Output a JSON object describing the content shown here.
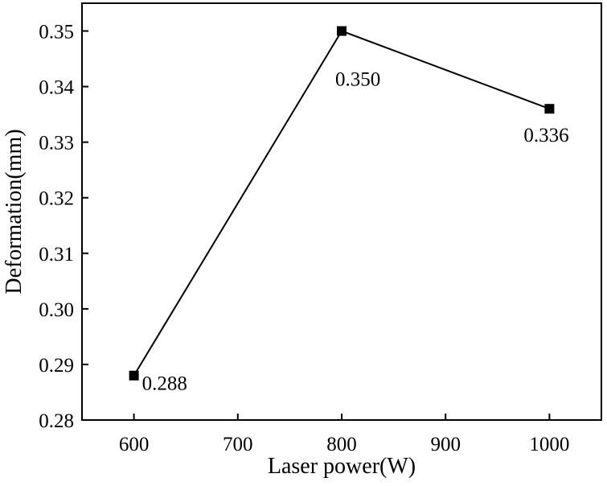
{
  "chart_data": {
    "type": "line",
    "xlabel": "Laser power(W)",
    "ylabel": "Deformation(mm)",
    "x": [
      600,
      800,
      1000
    ],
    "series": [
      {
        "values": [
          0.288,
          0.35,
          0.336
        ],
        "labels": [
          "0.288",
          "0.350",
          "0.336"
        ]
      }
    ],
    "xlim": [
      550,
      1050
    ],
    "ylim": [
      0.28,
      0.355
    ],
    "xticks": [
      "600",
      "700",
      "800",
      "900",
      "1000"
    ],
    "yticks": [
      "0.28",
      "0.29",
      "0.30",
      "0.31",
      "0.32",
      "0.33",
      "0.34",
      "0.35"
    ],
    "grid": false,
    "marker": "square",
    "line_color": "#000000"
  }
}
